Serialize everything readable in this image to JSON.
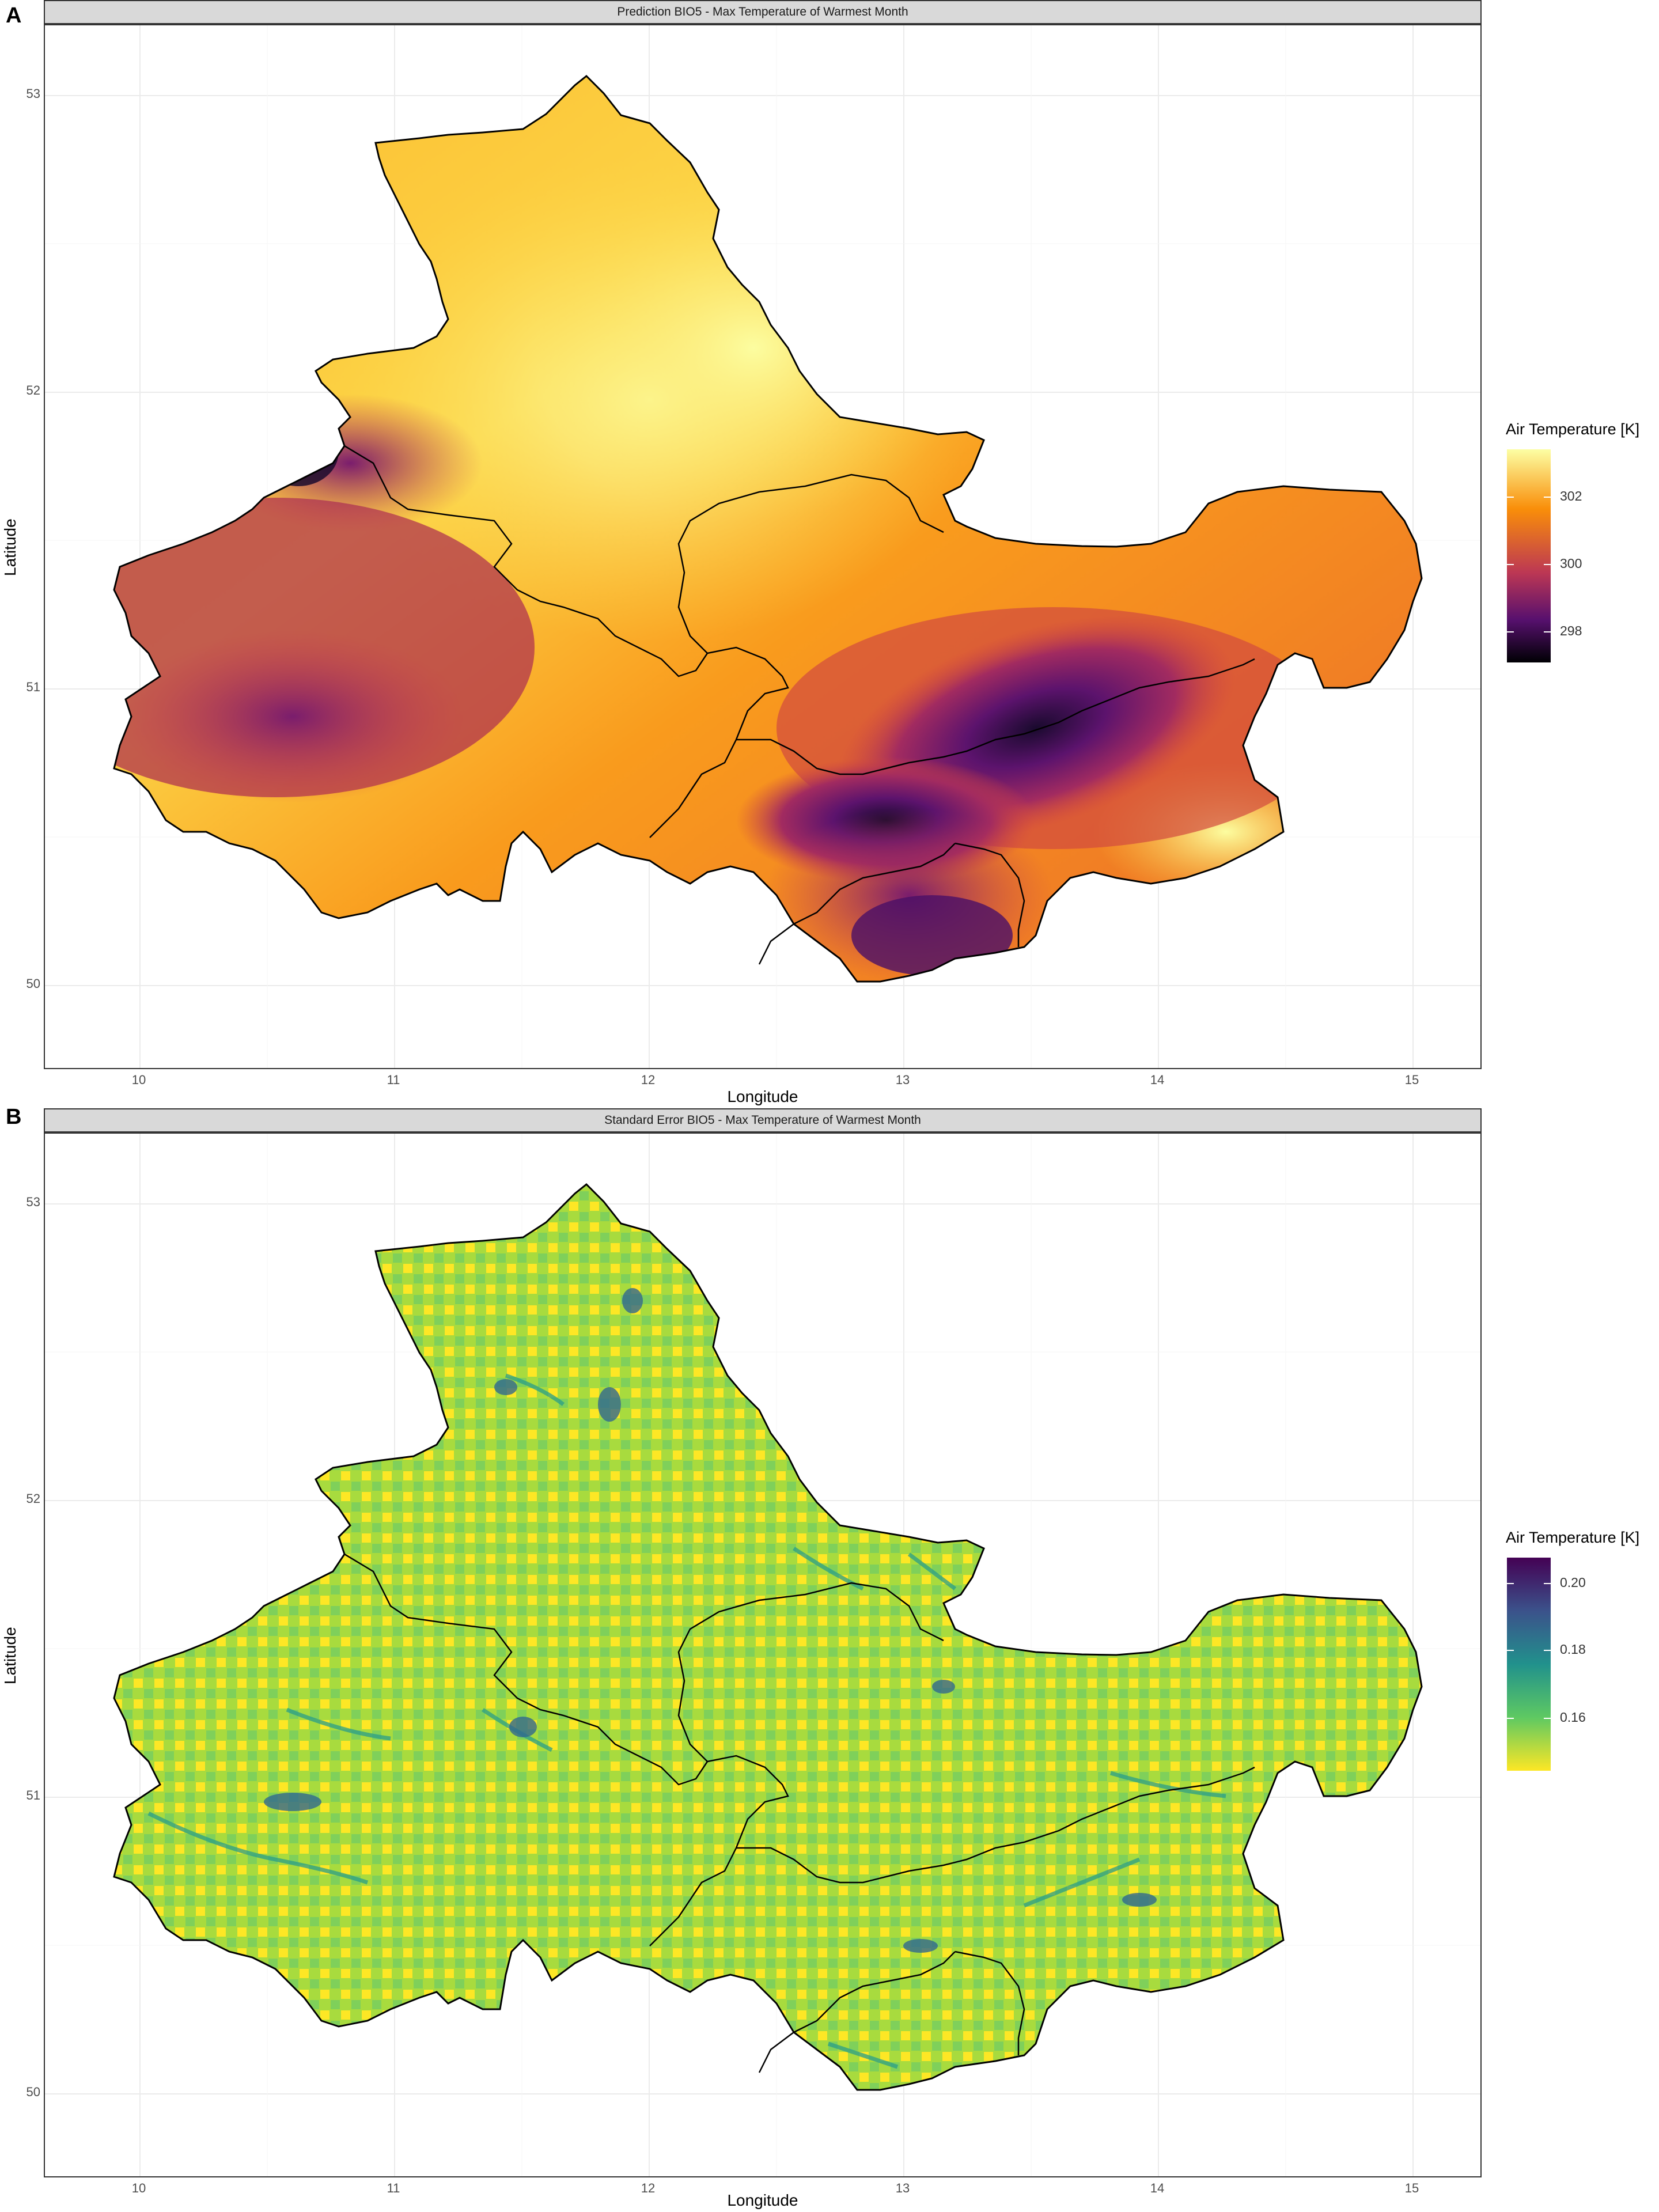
{
  "panels": [
    {
      "letter": "A",
      "title": "Prediction BIO5 - Max Temperature of Warmest Month",
      "x_axis_title": "Longitude",
      "y_axis_title": "Latitude",
      "x_ticks": [
        "10",
        "11",
        "12",
        "13",
        "14",
        "15"
      ],
      "y_ticks": [
        "53",
        "52",
        "51",
        "50"
      ],
      "legend": {
        "title": "Air Temperature [K]",
        "labels": [
          "302",
          "300",
          "298"
        ],
        "palette": "inferno",
        "colors": [
          "#fcffa4",
          "#f98e09",
          "#bc3754",
          "#57106e",
          "#000004"
        ]
      }
    },
    {
      "letter": "B",
      "title": "Standard Error BIO5 - Max Temperature of Warmest Month",
      "x_axis_title": "Longitude",
      "y_axis_title": "Latitude",
      "x_ticks": [
        "10",
        "11",
        "12",
        "13",
        "14",
        "15"
      ],
      "y_ticks": [
        "53",
        "52",
        "51",
        "50"
      ],
      "legend": {
        "title": "Air Temperature [K]",
        "labels": [
          "0.20",
          "0.18",
          "0.16"
        ],
        "palette": "viridis",
        "colors": [
          "#440154",
          "#3b528b",
          "#21918c",
          "#5ec962",
          "#fde725"
        ]
      }
    }
  ]
}
